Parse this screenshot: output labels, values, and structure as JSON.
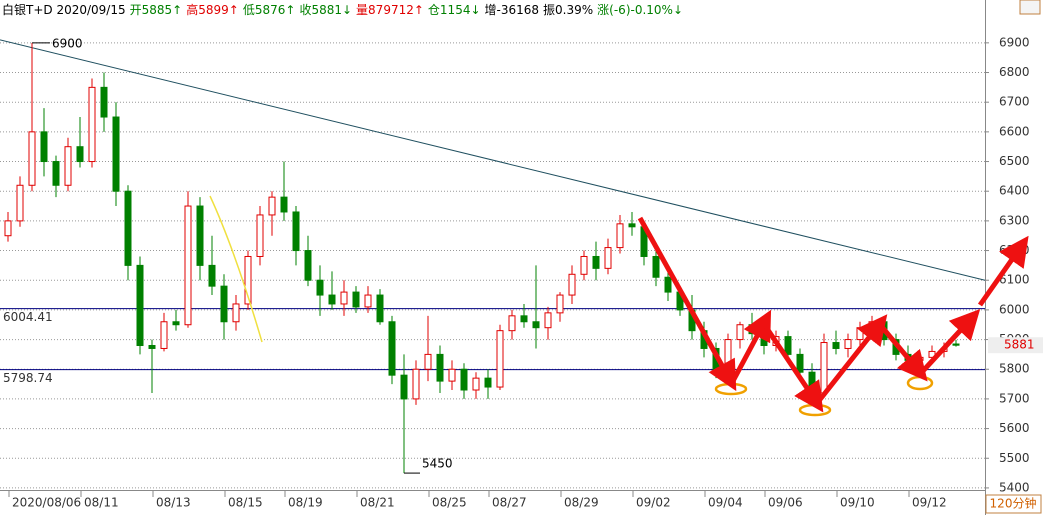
{
  "chart_data": {
    "type": "candlestick",
    "header": [
      {
        "text": "白银T+D 2020/09/15",
        "color": "#000000"
      },
      {
        "text": "开5885↑",
        "color": "#008000"
      },
      {
        "text": "高5899↑",
        "color": "#e00000"
      },
      {
        "text": "低5876↑",
        "color": "#008000"
      },
      {
        "text": "收5881↓",
        "color": "#008000"
      },
      {
        "text": "量879712↑",
        "color": "#e00000"
      },
      {
        "text": "仓1154↓",
        "color": "#008000"
      },
      {
        "text": "增-36168",
        "color": "#000000"
      },
      {
        "text": "振0.39%",
        "color": "#000000"
      },
      {
        "text": "涨(-6)-0.10%↓",
        "color": "#008000"
      }
    ],
    "period": "120分钟",
    "categories": [
      null,
      null,
      null,
      "2020/08/06",
      null,
      null,
      null,
      null,
      null,
      "08/11",
      null,
      null,
      null,
      null,
      null,
      "08/13",
      null,
      null,
      null,
      null,
      null,
      "08/15",
      null,
      null,
      null,
      null,
      "08/19",
      null,
      null,
      null,
      null,
      null,
      "08/21",
      null,
      null,
      null,
      null,
      null,
      "08/25",
      null,
      null,
      null,
      null,
      "08/27",
      null,
      null,
      null,
      null,
      null,
      "08/29",
      null,
      null,
      null,
      null,
      null,
      "09/02",
      null,
      null,
      null,
      null,
      null,
      "09/04",
      null,
      null,
      null,
      null,
      "09/06",
      null,
      null,
      null,
      null,
      null,
      "09/10",
      null,
      null,
      null,
      null,
      null,
      "09/12",
      null
    ],
    "open": [
      6250,
      6300,
      6420,
      6600,
      6500,
      6420,
      6550,
      6500,
      6750,
      6650,
      6400,
      6150,
      5880,
      5870,
      5960,
      5950,
      6350,
      6150,
      6080,
      5960,
      6020,
      6180,
      6320,
      6380,
      6330,
      6200,
      6100,
      6050,
      6020,
      6060,
      6010,
      6050,
      5960,
      5780,
      5700,
      5800,
      5850,
      5760,
      5800,
      5730,
      5770,
      5740,
      5930,
      5980,
      5960,
      5940,
      5990,
      6050,
      6120,
      6180,
      6140,
      6210,
      6290,
      6280,
      6180,
      6110,
      6060,
      6000,
      5930,
      5870,
      5800,
      5900,
      5950,
      5920,
      5880,
      5910,
      5850,
      5790,
      5720,
      5890,
      5870,
      5900,
      5940,
      5960,
      5900,
      5850,
      5830,
      5840,
      5860,
      5885
    ],
    "high": [
      6330,
      6450,
      6900,
      6680,
      6520,
      6580,
      6650,
      6780,
      6800,
      6700,
      6420,
      6180,
      5900,
      5990,
      6000,
      6400,
      6380,
      6250,
      6120,
      6050,
      6200,
      6350,
      6400,
      6500,
      6350,
      6250,
      6150,
      6130,
      6100,
      6080,
      6080,
      6070,
      5980,
      5850,
      5830,
      5980,
      5880,
      5830,
      5820,
      5790,
      5800,
      5950,
      6000,
      6020,
      6150,
      6010,
      6060,
      6150,
      6200,
      6230,
      6240,
      6320,
      6330,
      6290,
      6200,
      6140,
      6080,
      6050,
      5960,
      5890,
      5920,
      5960,
      5990,
      5940,
      5930,
      5930,
      5870,
      5820,
      5920,
      5930,
      5920,
      5960,
      5980,
      5970,
      5920,
      5880,
      5860,
      5880,
      5890,
      5899
    ],
    "low": [
      6230,
      6280,
      6400,
      6450,
      6380,
      6400,
      6480,
      6480,
      6600,
      6350,
      6100,
      5850,
      5720,
      5860,
      5930,
      5940,
      6100,
      6050,
      5900,
      5930,
      6000,
      6150,
      6250,
      6300,
      6150,
      6080,
      5980,
      6000,
      5980,
      5990,
      5990,
      5950,
      5750,
      5450,
      5680,
      5760,
      5720,
      5730,
      5700,
      5700,
      5700,
      5730,
      5900,
      5940,
      5870,
      5900,
      5960,
      6020,
      6100,
      6100,
      6120,
      6190,
      6250,
      6150,
      6080,
      6030,
      5980,
      5900,
      5840,
      5770,
      5780,
      5870,
      5900,
      5850,
      5860,
      5830,
      5760,
      5690,
      5710,
      5850,
      5840,
      5880,
      5910,
      5880,
      5830,
      5810,
      5800,
      5820,
      5840,
      5876
    ],
    "close": [
      6300,
      6420,
      6600,
      6500,
      6420,
      6550,
      6500,
      6750,
      6650,
      6400,
      6150,
      5880,
      5870,
      5960,
      5950,
      6350,
      6150,
      6080,
      5960,
      6020,
      6180,
      6320,
      6380,
      6330,
      6200,
      6100,
      6050,
      6020,
      6060,
      6010,
      6050,
      5960,
      5780,
      5700,
      5800,
      5850,
      5760,
      5800,
      5730,
      5770,
      5740,
      5930,
      5980,
      5960,
      5940,
      5990,
      6050,
      6120,
      6180,
      6140,
      6210,
      6290,
      6280,
      6180,
      6110,
      6060,
      6000,
      5930,
      5870,
      5800,
      5900,
      5950,
      5920,
      5880,
      5910,
      5850,
      5790,
      5720,
      5890,
      5870,
      5900,
      5940,
      5960,
      5900,
      5850,
      5830,
      5840,
      5860,
      5870,
      5881
    ],
    "up_color": "#e00000",
    "down_color": "#008000",
    "hlines": [
      6004.41,
      5798.74
    ],
    "trendline": [
      6910,
      6100
    ],
    "ylim": [
      5393,
      6977
    ],
    "yticks": [
      5400,
      5500,
      5600,
      5700,
      5800,
      5900,
      6000,
      6100,
      6200,
      6300,
      6400,
      6500,
      6600,
      6700,
      6800,
      6900
    ],
    "grid": true
  }
}
